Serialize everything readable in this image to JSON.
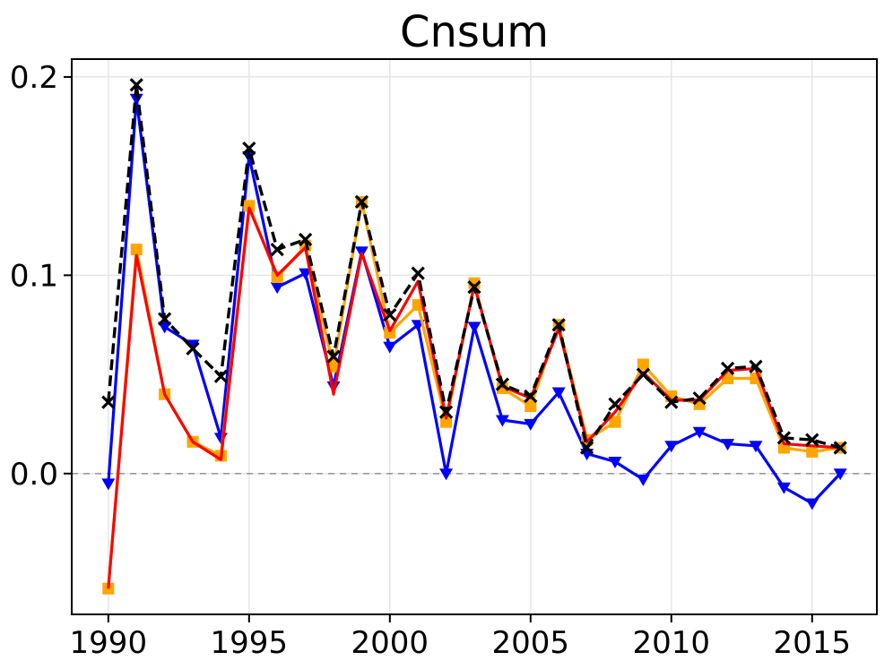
{
  "chart_data": {
    "type": "line",
    "title": "Cnsum",
    "xlabel": "",
    "ylabel": "",
    "x": [
      1990,
      1991,
      1992,
      1993,
      1994,
      1995,
      1996,
      1997,
      1998,
      1999,
      2000,
      2001,
      2002,
      2003,
      2004,
      2005,
      2006,
      2007,
      2008,
      2009,
      2010,
      2011,
      2012,
      2013,
      2014,
      2015,
      2016
    ],
    "series": [
      {
        "name": "blue-triangle-series",
        "color": "#0000ff",
        "line_style": "solid",
        "marker": "triangle-down",
        "values": [
          -0.005,
          0.189,
          0.074,
          0.065,
          0.018,
          0.16,
          0.094,
          0.101,
          0.044,
          0.112,
          0.064,
          0.075,
          0.0,
          0.074,
          0.027,
          0.025,
          0.041,
          0.01,
          0.006,
          -0.003,
          0.014,
          0.021,
          0.015,
          0.014,
          -0.007,
          -0.015,
          0.0
        ]
      },
      {
        "name": "orange-square-series",
        "color": "#ffa500",
        "line_style": "solid",
        "marker": "square",
        "values": [
          -0.058,
          0.113,
          0.04,
          0.016,
          0.009,
          0.135,
          0.099,
          0.115,
          0.054,
          0.137,
          0.071,
          0.085,
          0.026,
          0.096,
          0.043,
          0.034,
          0.075,
          0.017,
          0.026,
          0.055,
          0.039,
          0.035,
          0.048,
          0.048,
          0.013,
          0.011,
          0.013
        ]
      },
      {
        "name": "red-series",
        "color": "#ff0000",
        "line_style": "solid",
        "marker": "none",
        "values": [
          -0.058,
          0.11,
          0.04,
          0.016,
          0.007,
          0.134,
          0.1,
          0.114,
          0.04,
          0.111,
          0.072,
          0.097,
          0.028,
          0.095,
          0.044,
          0.038,
          0.073,
          0.016,
          0.031,
          0.051,
          0.037,
          0.037,
          0.052,
          0.053,
          0.015,
          0.014,
          0.013
        ]
      },
      {
        "name": "black-dashed-x-series",
        "color": "#000000",
        "line_style": "dashed",
        "marker": "x",
        "values": [
          0.036,
          0.196,
          0.078,
          0.063,
          0.049,
          0.164,
          0.113,
          0.118,
          0.059,
          0.137,
          0.08,
          0.101,
          0.031,
          0.094,
          0.045,
          0.039,
          0.075,
          0.013,
          0.035,
          0.05,
          0.036,
          0.038,
          0.053,
          0.054,
          0.018,
          0.017,
          0.013
        ]
      }
    ],
    "xticks": [
      1990,
      1995,
      2000,
      2005,
      2010,
      2015
    ],
    "xtick_labels": [
      "1990",
      "1995",
      "2000",
      "2005",
      "2010",
      "2015"
    ],
    "yticks": [
      0.0,
      0.1,
      0.2
    ],
    "ytick_labels": [
      "0.0",
      "0.1",
      "0.2"
    ],
    "xlim": [
      1988.7,
      2017.3
    ],
    "ylim": [
      -0.071,
      0.209
    ],
    "grid": true,
    "grid_color": "#e6e6e6",
    "zero_line": true,
    "zero_line_color": "#9a9a9a",
    "background_color": "#ffffff",
    "spine_color": "#000000",
    "legend_position": "none"
  }
}
